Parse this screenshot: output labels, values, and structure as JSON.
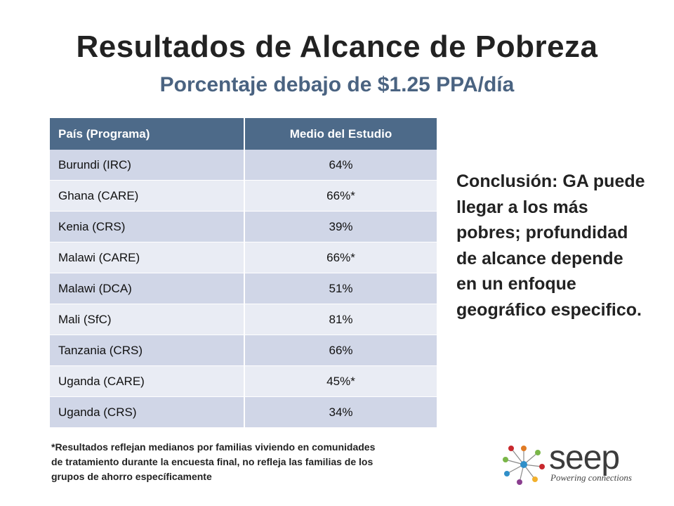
{
  "title": "Resultados de Alcance de Pobreza",
  "subtitle": "Porcentaje debajo de $1.25 PPA/día",
  "table": {
    "headers": [
      "País (Programa)",
      "Medio del Estudio"
    ],
    "rows": [
      [
        "Burundi (IRC)",
        "64%"
      ],
      [
        "Ghana (CARE)",
        "66%*"
      ],
      [
        "Kenia (CRS)",
        "39%"
      ],
      [
        "Malawi (CARE)",
        "66%*"
      ],
      [
        "Malawi (DCA)",
        "51%"
      ],
      [
        "Mali (SfC)",
        "81%"
      ],
      [
        "Tanzania (CRS)",
        "66%"
      ],
      [
        "Uganda (CARE)",
        "45%*"
      ],
      [
        "Uganda (CRS)",
        "34%"
      ]
    ]
  },
  "conclusion": "Conclusión: GA puede llegar a los más pobres; profundidad de alcance depende en un enfoque geográfico especifico.",
  "footnote": [
    "*Resultados reflejan medianos por familias viviendo en comunidades",
    " de tratamiento durante  la encuesta final, no  refleja las familias de los",
    "grupos de ahorro específicamente"
  ],
  "logo": {
    "wordmark": "seep",
    "tagline": "Powering connections",
    "colors": [
      "#e07b24",
      "#7ab648",
      "#2f8fc9",
      "#c8282d",
      "#8a3e8f",
      "#f2b02c"
    ]
  }
}
